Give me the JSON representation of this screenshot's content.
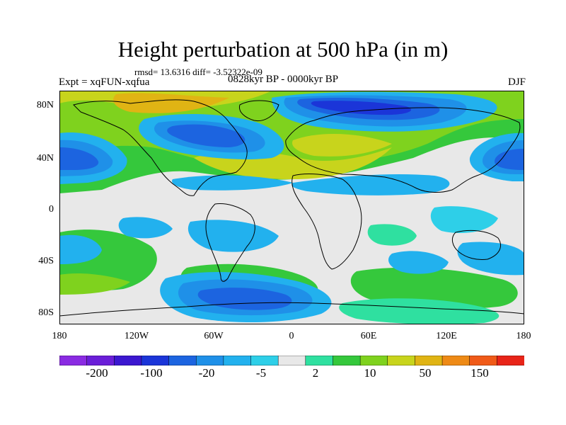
{
  "title": "Height perturbation at 500 hPa (in m)",
  "stats": "rmsd= 13.6316  diff= -3.52322e-09",
  "experiment": "Expt = xqFUN-xqfua",
  "period": "0828kyr BP - 0000kyr BP",
  "season": "DJF",
  "lat_ticks": [
    "80N",
    "40N",
    "0",
    "40S",
    "80S"
  ],
  "lon_ticks": [
    "180",
    "120W",
    "60W",
    "0",
    "60E",
    "120E",
    "180"
  ],
  "colorbar": {
    "colors": [
      "#8a2be2",
      "#6a1ed8",
      "#3b17d0",
      "#1b35d8",
      "#1c64e0",
      "#1f90e8",
      "#22b1ee",
      "#2ecfe8",
      "#e8e8e8",
      "#2fe0a0",
      "#35c83c",
      "#7fd21e",
      "#c8d41c",
      "#e0b414",
      "#ee8a16",
      "#f05a18",
      "#e82418"
    ],
    "labels": [
      "-200",
      "-100",
      "-20",
      "-5",
      "2",
      "10",
      "50",
      "150"
    ]
  }
}
